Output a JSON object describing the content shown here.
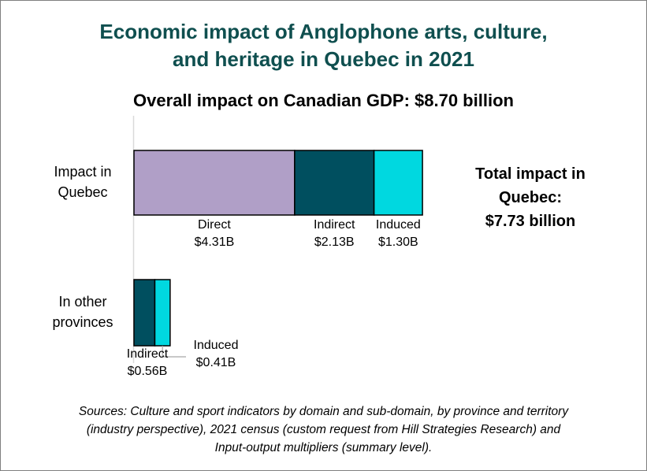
{
  "chart_data": {
    "type": "bar",
    "orientation": "horizontal",
    "stacked": true,
    "title_lines": [
      "Economic impact of Anglophone arts, culture,",
      "and heritage in Quebec in 2021"
    ],
    "subtitle": "Overall impact on Canadian GDP: $8.70 billion",
    "categories": [
      {
        "label_lines": [
          "Impact in",
          "Quebec"
        ]
      },
      {
        "label_lines": [
          "In other",
          "provinces"
        ]
      }
    ],
    "series": [
      {
        "name": "Direct",
        "color": "#b09fc7",
        "values": [
          4.31,
          0
        ],
        "labels": [
          [
            "Direct",
            "$4.31B"
          ],
          null
        ]
      },
      {
        "name": "Indirect",
        "color": "#004f5f",
        "values": [
          2.13,
          0.56
        ],
        "labels": [
          [
            "Indirect",
            "$2.13B"
          ],
          [
            "Indirect",
            "$0.56B"
          ]
        ]
      },
      {
        "name": "Induced",
        "color": "#00d8e0",
        "values": [
          1.3,
          0.41
        ],
        "labels": [
          [
            "Induced",
            "$1.30B"
          ],
          [
            "Induced",
            "$0.41B"
          ]
        ]
      }
    ],
    "annotation_lines": [
      "Total impact in",
      "Quebec:",
      "$7.73 billion"
    ],
    "source_lines": [
      "Sources: Culture and sport indicators by domain and sub-domain, by province and territory",
      "(industry perspective), 2021 census (custom request from Hill Strategies Research) and",
      "Input-output multipliers (summary level)."
    ],
    "grid": false,
    "legend": "none"
  }
}
